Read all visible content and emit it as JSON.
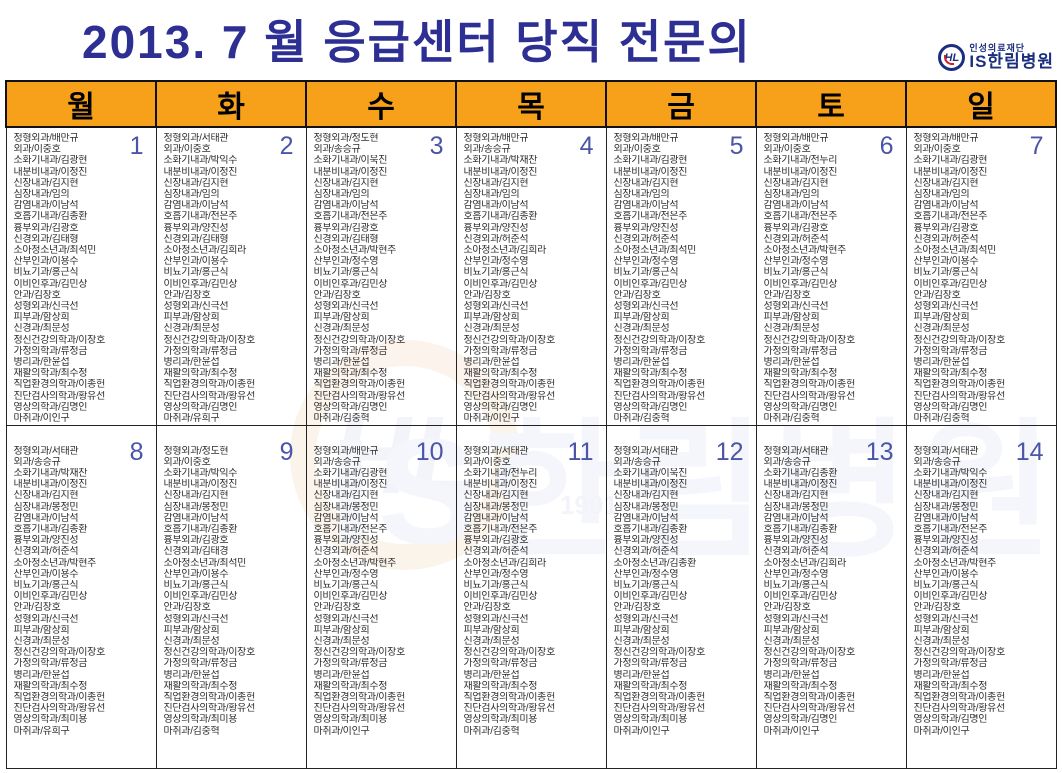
{
  "title": "2013. 7 월 응급센터 당직 전문의",
  "logo": {
    "monogram": "HL",
    "foundation": "인성의료재단",
    "hospital": "IS한림병원"
  },
  "watermark": {
    "monogram": "HL",
    "text": "IS한림병원",
    "year": "1991"
  },
  "colors": {
    "title": "#2d2f92",
    "header_bg": "#f7a11a",
    "day_number": "#4a55a8",
    "logo_navy": "#1b2f7e"
  },
  "weekdays": [
    "월",
    "화",
    "수",
    "목",
    "금",
    "토",
    "일"
  ],
  "days": [
    {
      "date": "1",
      "entries": [
        "정형외과/배만규",
        "외과/이중호",
        "소화기내과/김광현",
        "내분비내과/이정진",
        "신장내과/김지현",
        "심장내과/임의",
        "감염내과/이남석",
        "호흡기내과/김종환",
        "흉부외과/김광호",
        "신경외과/김태형",
        "소아청소년과/최석민",
        "산부인과/이용수",
        "비뇨기과/홍근식",
        "이비인후과/김민상",
        "안과/김창호",
        "성형외과/신극선",
        "피부과/함상희",
        "신경과/최문성",
        "정신건강의학과/이장호",
        "가정의학과/류정금",
        "병리과/한윤섭",
        "재활의학과/최수정",
        "직업환경의학과/이종헌",
        "진단검사의학과/황유선",
        "영상의학과/김명인",
        "마취과/이인구"
      ]
    },
    {
      "date": "2",
      "entries": [
        "정형외과/서태관",
        "외과/이중호",
        "소화기내과/박익수",
        "내분비내과/이정진",
        "신장내과/김지현",
        "심장내과/임의",
        "감염내과/이남석",
        "호흡기내과/전은주",
        "흉부외과/양진성",
        "신경외과/김태형",
        "소아청소년과/김희라",
        "산부인과/이용수",
        "비뇨기과/홍근식",
        "이비인후과/김민상",
        "안과/김창호",
        "성형외과/신극선",
        "피부과/함상희",
        "신경과/최문성",
        "정신건강의학과/이장호",
        "가정의학과/류정금",
        "병리과/한윤섭",
        "재활의학과/최수정",
        "직업환경의학과/이종헌",
        "진단검사의학과/황유선",
        "영상의학과/김명인",
        "마취과/유희구"
      ]
    },
    {
      "date": "3",
      "entries": [
        "정형외과/정도현",
        "외과/송승규",
        "소화기내과/이욱진",
        "내분비내과/이정진",
        "신장내과/김지현",
        "심장내과/임의",
        "감염내과/이남석",
        "호흡기내과/전은주",
        "흉부외과/김광호",
        "신경외과/김태형",
        "소아청소년과/박현주",
        "산부인과/정수영",
        "비뇨기과/홍근식",
        "이비인후과/김민상",
        "안과/김창호",
        "성형외과/신극선",
        "피부과/함상희",
        "신경과/최문성",
        "정신건강의학과/이장호",
        "가정의학과/류정금",
        "병리과/한윤섭",
        "재활의학과/최수정",
        "직업환경의학과/이종헌",
        "진단검사의학과/황유선",
        "영상의학과/김명인",
        "마취과/김중혁"
      ]
    },
    {
      "date": "4",
      "entries": [
        "정형외과/배만규",
        "외과/송승규",
        "소화기내과/박재찬",
        "내분비내과/이정진",
        "신장내과/김지현",
        "심장내과/임의",
        "감염내과/이남석",
        "호흡기내과/김종환",
        "흉부외과/양진성",
        "신경외과/허준석",
        "소아청소년과/김희라",
        "산부인과/정수영",
        "비뇨기과/홍근식",
        "이비인후과/김민상",
        "안과/김창호",
        "성형외과/신극선",
        "피부과/함상희",
        "신경과/최문성",
        "정신건강의학과/이장호",
        "가정의학과/류정금",
        "병리과/한윤섭",
        "재활의학과/최수정",
        "직업환경의학과/이종헌",
        "진단검사의학과/황유선",
        "영상의학과/김명인",
        "마취과/이인구"
      ]
    },
    {
      "date": "5",
      "entries": [
        "정형외과/배만규",
        "외과/이중호",
        "소화기내과/김광현",
        "내분비내과/이정진",
        "신장내과/김지현",
        "심장내과/임의",
        "감염내과/이남석",
        "호흡기내과/전은주",
        "흉부외과/양진성",
        "신경외과/허준석",
        "소아청소년과/최석민",
        "산부인과/정수영",
        "비뇨기과/홍근식",
        "이비인후과/김민상",
        "안과/김창호",
        "성형외과/신극선",
        "피부과/함상희",
        "신경과/최문성",
        "정신건강의학과/이장호",
        "가정의학과/류정금",
        "병리과/한윤섭",
        "재활의학과/최수정",
        "직업환경의학과/이종헌",
        "진단검사의학과/황유선",
        "영상의학과/김명인",
        "마취과/김중혁"
      ]
    },
    {
      "date": "6",
      "entries": [
        "정형외과/배만규",
        "외과/이중호",
        "소화기내과/전누리",
        "내분비내과/이정진",
        "신장내과/김지현",
        "심장내과/임의",
        "감염내과/이남석",
        "호흡기내과/전은주",
        "흉부외과/김광호",
        "신경외과/허준석",
        "소아청소년과/박현주",
        "산부인과/정수영",
        "비뇨기과/홍근식",
        "이비인후과/김민상",
        "안과/김창호",
        "성형외과/신극선",
        "피부과/함상희",
        "신경과/최문성",
        "정신건강의학과/이장호",
        "가정의학과/류정금",
        "병리과/한윤섭",
        "재활의학과/최수정",
        "직업환경의학과/이종헌",
        "진단검사의학과/황유선",
        "영상의학과/김명인",
        "마취과/김중혁"
      ]
    },
    {
      "date": "7",
      "entries": [
        "정형외과/배만규",
        "외과/이중호",
        "소화기내과/김광현",
        "내분비내과/이정진",
        "신장내과/김지현",
        "심장내과/임의",
        "감염내과/이남석",
        "호흡기내과/전은주",
        "흉부외과/김광호",
        "신경외과/허준석",
        "소아청소년과/최석민",
        "산부인과/이용수",
        "비뇨기과/홍근식",
        "이비인후과/김민상",
        "안과/김창호",
        "성형외과/신극선",
        "피부과/함상희",
        "신경과/최문성",
        "정신건강의학과/이장호",
        "가정의학과/류정금",
        "병리과/한윤섭",
        "재활의학과/최수정",
        "직업환경의학과/이종헌",
        "진단검사의학과/황유선",
        "영상의학과/김명인",
        "마취과/김중혁"
      ]
    },
    {
      "date": "8",
      "entries": [
        "정형외과/서태관",
        "외과/송승규",
        "소화기내과/박재찬",
        "내분비내과/이정진",
        "신장내과/김지현",
        "심장내과/봉정민",
        "감염내과/이남석",
        "호흡기내과/김종환",
        "흉부외과/양진성",
        "신경외과/허준석",
        "소아청소년과/박현주",
        "산부인과/이용수",
        "비뇨기과/홍근식",
        "이비인후과/김민상",
        "안과/김창호",
        "성형외과/신극선",
        "피부과/함상희",
        "신경과/최문성",
        "정신건강의학과/이장호",
        "가정의학과/류정금",
        "병리과/한윤섭",
        "재활의학과/최수정",
        "직업환경의학과/이종헌",
        "진단검사의학과/황유선",
        "영상의학과/최미용",
        "마취과/유희구"
      ]
    },
    {
      "date": "9",
      "entries": [
        "정형외과/정도현",
        "외과/이중호",
        "소화기내과/박익수",
        "내분비내과/이정진",
        "신장내과/김지현",
        "심장내과/봉정민",
        "감염내과/이남석",
        "호흡기내과/김종환",
        "흉부외과/김광호",
        "신경외과/김태경",
        "소아청소년과/최석민",
        "산부인과/이용수",
        "비뇨기과/홍근식",
        "이비인후과/김민상",
        "안과/김창호",
        "성형외과/신극선",
        "피부과/함상희",
        "신경과/최문성",
        "정신건강의학과/이장호",
        "가정의학과/류정금",
        "병리과/한윤섭",
        "재활의학과/최수정",
        "직업환경의학과/이종헌",
        "진단검사의학과/황유선",
        "영상의학과/최미용",
        "마취과/김중혁"
      ]
    },
    {
      "date": "10",
      "entries": [
        "정형외과/배만규",
        "외과/송승규",
        "소화기내과/김광현",
        "내분비내과/이정진",
        "신장내과/김지현",
        "심장내과/봉정민",
        "감염내과/이남석",
        "호흡기내과/전은주",
        "흉부외과/양진성",
        "신경외과/허준석",
        "소아청소년과/박현주",
        "산부인과/정수영",
        "비뇨기과/홍근식",
        "이비인후과/김민상",
        "안과/김창호",
        "성형외과/신극선",
        "피부과/함상희",
        "신경과/최문성",
        "정신건강의학과/이장호",
        "가정의학과/류정금",
        "병리과/한윤섭",
        "재활의학과/최수정",
        "직업환경의학과/이종헌",
        "진단검사의학과/황유선",
        "영상의학과/최미용",
        "마취과/이인구"
      ]
    },
    {
      "date": "11",
      "entries": [
        "정형외과/서태관",
        "외과/이중호",
        "소화기내과/전누리",
        "내분비내과/이정진",
        "신장내과/김지현",
        "심장내과/봉정민",
        "감염내과/이남석",
        "호흡기내과/전은주",
        "흉부외과/김광호",
        "신경외과/허준석",
        "소아청소년과/김희라",
        "산부인과/정수영",
        "비뇨기과/홍근식",
        "이비인후과/김민상",
        "안과/김창호",
        "성형외과/신극선",
        "피부과/함상희",
        "신경과/최문성",
        "정신건강의학과/이장호",
        "가정의학과/류정금",
        "병리과/한윤섭",
        "재활의학과/최수정",
        "직업환경의학과/이종헌",
        "진단검사의학과/황유선",
        "영상의학과/최미용",
        "마취과/김중혁"
      ]
    },
    {
      "date": "12",
      "entries": [
        "정형외과/서태관",
        "외과/송승규",
        "소화기내과/이욱진",
        "내분비내과/이정진",
        "신장내과/김지현",
        "심장내과/봉정민",
        "감염내과/이남석",
        "호흡기내과/김종환",
        "흉부외과/양진성",
        "신경외과/허준석",
        "소아청소년과/김종환",
        "산부인과/정수영",
        "비뇨기과/홍근식",
        "이비인후과/김민상",
        "안과/김창호",
        "성형외과/신극선",
        "피부과/함상희",
        "신경과/최문성",
        "정신건강의학과/이장호",
        "가정의학과/류정금",
        "병리과/한윤섭",
        "재활의학과/최수정",
        "직업환경의학과/이종헌",
        "진단검사의학과/황유선",
        "영상의학과/최미용",
        "마취과/이인구"
      ]
    },
    {
      "date": "13",
      "entries": [
        "정형외과/서태관",
        "외과/송승규",
        "소화기내과/김종환",
        "내분비내과/이정진",
        "신장내과/김지현",
        "심장내과/봉정민",
        "감염내과/이남석",
        "호흡기내과/김종환",
        "흉부외과/양진성",
        "신경외과/허준석",
        "소아청소년과/김희라",
        "산부인과/정수영",
        "비뇨기과/홍근식",
        "이비인후과/김민상",
        "안과/김창호",
        "성형외과/신극선",
        "피부과/함상희",
        "신경과/최문성",
        "정신건강의학과/이장호",
        "가정의학과/류정금",
        "병리과/한윤섭",
        "재활의학과/최수정",
        "직업환경의학과/이종헌",
        "진단검사의학과/황유선",
        "영상의학과/김명인",
        "마취과/이인구"
      ]
    },
    {
      "date": "14",
      "entries": [
        "정형외과/서태관",
        "외과/송승규",
        "소화기내과/박익수",
        "내분비내과/이정진",
        "신장내과/김지현",
        "심장내과/봉정민",
        "감염내과/이남석",
        "호흡기내과/전은주",
        "흉부외과/양진성",
        "신경외과/허준석",
        "소아청소년과/박현주",
        "산부인과/이용수",
        "비뇨기과/홍근식",
        "이비인후과/김민상",
        "안과/김창호",
        "성형외과/신극선",
        "피부과/함상희",
        "신경과/최문성",
        "정신건강의학과/이장호",
        "가정의학과/류정금",
        "병리과/한윤섭",
        "재활의학과/최수정",
        "직업환경의학과/이종헌",
        "진단검사의학과/황유선",
        "영상의학과/김명인",
        "마취과/이인구"
      ]
    }
  ]
}
